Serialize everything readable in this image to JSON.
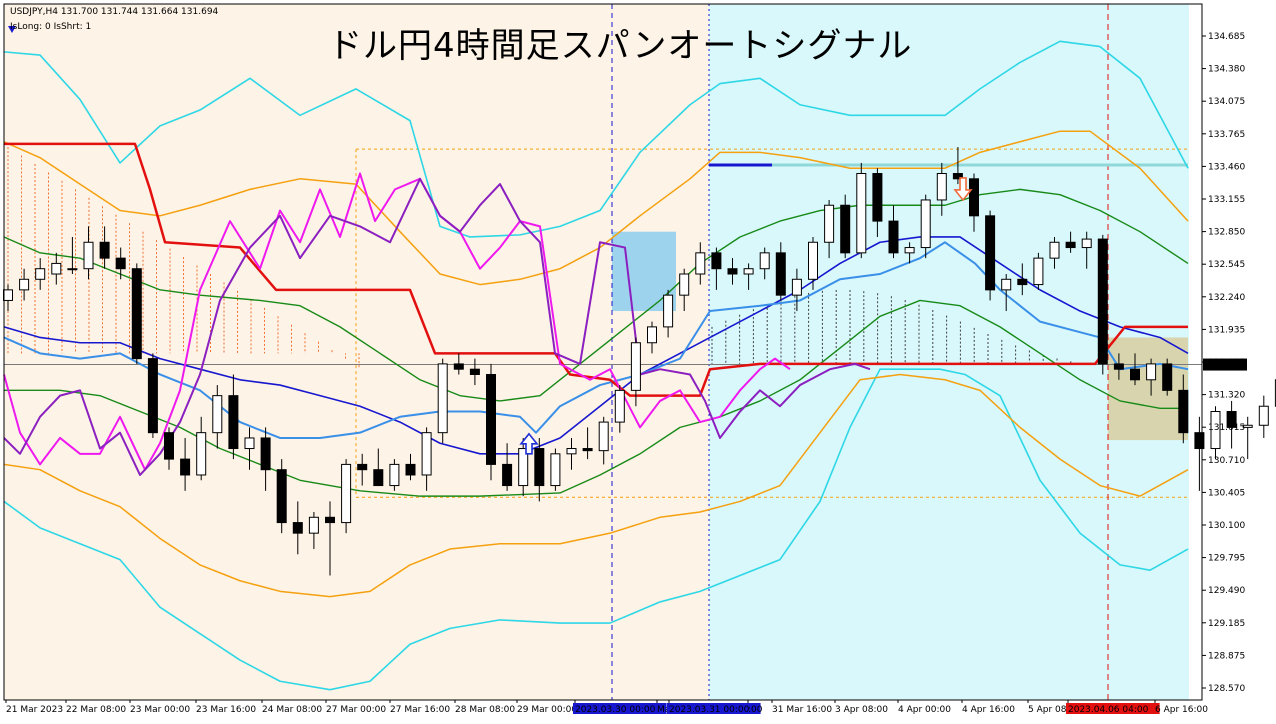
{
  "header": {
    "symbol_line": "USDJPY,H4  131.700 131.744 131.664 131.694",
    "indicator_line": "IsLong: 0 IsShrt: 1"
  },
  "title": "ドル円4時間足スパンオートシグナル",
  "chart_data": {
    "type": "candlestick",
    "symbol": "USDJPY",
    "timeframe": "H4",
    "ohlc_header": {
      "open": 131.7,
      "high": 131.744,
      "low": 131.664,
      "close": 131.694
    },
    "current_price": "131.694",
    "y_ticks": [
      "134.685",
      "134.380",
      "134.075",
      "133.765",
      "133.460",
      "133.155",
      "132.850",
      "132.545",
      "132.240",
      "131.935",
      "131.625",
      "131.320",
      "131.015",
      "130.710",
      "130.405",
      "130.100",
      "129.795",
      "129.490",
      "129.185",
      "128.875",
      "128.570"
    ],
    "ylim": [
      128.57,
      134.85
    ],
    "x_ticks": [
      "21 Mar 2023",
      "22 Mar 08:00",
      "23 Mar 00:00",
      "23 Mar 16:00",
      "24 Mar 08:00",
      "27 Mar 00:00",
      "27 Mar 16:00",
      "28 Mar 08:00",
      "29 Mar 00:00",
      "2023.03.30 00:00",
      "Ma",
      "2023.03.31 00:00",
      ":00",
      "31 Mar 16:00",
      "3 Apr 08:00",
      "4 Apr 00:00",
      "4 Apr 16:00",
      "5 Apr 08:00",
      "2023.04.06 04:00",
      "6 Apr 16:00"
    ],
    "highlighted_x_ticks": [
      "2023.03.30 00:00",
      "2023.03.31 00:00",
      "2023.04.06 04:00"
    ],
    "candles": [
      [
        132.3,
        132.45,
        132.2,
        132.4
      ],
      [
        132.4,
        132.6,
        132.3,
        132.5
      ],
      [
        132.5,
        132.7,
        132.4,
        132.6
      ],
      [
        132.55,
        132.75,
        132.45,
        132.65
      ],
      [
        132.6,
        132.9,
        132.55,
        132.6
      ],
      [
        132.6,
        133.0,
        132.5,
        132.85
      ],
      [
        132.85,
        133.0,
        132.6,
        132.7
      ],
      [
        132.7,
        132.8,
        132.5,
        132.6
      ],
      [
        132.6,
        132.65,
        131.7,
        131.75
      ],
      [
        131.75,
        131.8,
        131.0,
        131.05
      ],
      [
        131.05,
        131.1,
        130.7,
        130.8
      ],
      [
        130.8,
        131.0,
        130.5,
        130.65
      ],
      [
        130.65,
        131.2,
        130.6,
        131.05
      ],
      [
        131.05,
        131.5,
        130.9,
        131.4
      ],
      [
        131.4,
        131.6,
        130.8,
        130.9
      ],
      [
        130.9,
        131.1,
        130.7,
        131.0
      ],
      [
        131.0,
        131.1,
        130.5,
        130.7
      ],
      [
        130.7,
        130.8,
        130.1,
        130.2
      ],
      [
        130.2,
        130.4,
        129.9,
        130.1
      ],
      [
        130.1,
        130.3,
        129.95,
        130.25
      ],
      [
        130.25,
        130.4,
        129.7,
        130.2
      ],
      [
        130.2,
        130.8,
        130.1,
        130.75
      ],
      [
        130.75,
        130.85,
        130.55,
        130.7
      ],
      [
        130.7,
        130.9,
        130.6,
        130.55
      ],
      [
        130.55,
        130.8,
        130.5,
        130.75
      ],
      [
        130.75,
        130.85,
        130.6,
        130.65
      ],
      [
        130.65,
        131.1,
        130.5,
        131.05
      ],
      [
        131.05,
        131.75,
        130.95,
        131.7
      ],
      [
        131.7,
        131.8,
        131.6,
        131.65
      ],
      [
        131.65,
        131.75,
        131.5,
        131.6
      ],
      [
        131.6,
        131.7,
        130.6,
        130.75
      ],
      [
        130.75,
        130.95,
        130.5,
        130.55
      ],
      [
        130.55,
        131.0,
        130.45,
        130.9
      ],
      [
        130.9,
        131.0,
        130.4,
        130.55
      ],
      [
        130.55,
        130.9,
        130.5,
        130.85
      ],
      [
        130.85,
        131.0,
        130.7,
        130.9
      ],
      [
        130.9,
        131.1,
        130.8,
        130.88
      ],
      [
        130.88,
        131.2,
        130.75,
        131.15
      ],
      [
        131.15,
        131.5,
        131.05,
        131.45
      ],
      [
        131.45,
        131.95,
        131.3,
        131.9
      ],
      [
        131.9,
        132.1,
        131.8,
        132.05
      ],
      [
        132.05,
        132.4,
        131.95,
        132.35
      ],
      [
        132.35,
        132.6,
        132.2,
        132.55
      ],
      [
        132.55,
        132.85,
        132.45,
        132.75
      ],
      [
        132.75,
        132.8,
        132.4,
        132.6
      ],
      [
        132.6,
        132.7,
        132.45,
        132.55
      ],
      [
        132.55,
        132.65,
        132.4,
        132.6
      ],
      [
        132.6,
        132.8,
        132.5,
        132.75
      ],
      [
        132.75,
        132.85,
        132.3,
        132.35
      ],
      [
        132.35,
        132.6,
        132.2,
        132.5
      ],
      [
        132.5,
        132.9,
        132.4,
        132.85
      ],
      [
        132.85,
        133.25,
        132.7,
        133.2
      ],
      [
        133.2,
        133.3,
        132.7,
        132.75
      ],
      [
        132.75,
        133.6,
        132.7,
        133.5
      ],
      [
        133.5,
        133.55,
        132.9,
        133.05
      ],
      [
        133.05,
        133.2,
        132.7,
        132.75
      ],
      [
        132.75,
        132.85,
        132.65,
        132.8
      ],
      [
        132.8,
        133.3,
        132.7,
        133.25
      ],
      [
        133.25,
        133.6,
        133.1,
        133.5
      ],
      [
        133.5,
        133.75,
        133.4,
        133.45
      ],
      [
        133.45,
        133.5,
        132.95,
        133.1
      ],
      [
        133.1,
        133.15,
        132.3,
        132.4
      ],
      [
        132.4,
        132.55,
        132.2,
        132.5
      ],
      [
        132.5,
        132.65,
        132.35,
        132.45
      ],
      [
        132.45,
        132.75,
        132.4,
        132.7
      ],
      [
        132.7,
        132.9,
        132.6,
        132.85
      ],
      [
        132.85,
        132.95,
        132.75,
        132.8
      ],
      [
        132.8,
        132.95,
        132.6,
        132.88
      ],
      [
        132.88,
        132.92,
        131.6,
        131.7
      ],
      [
        131.7,
        131.8,
        131.55,
        131.65
      ],
      [
        131.65,
        131.8,
        131.5,
        131.55
      ],
      [
        131.55,
        131.75,
        131.4,
        131.7
      ],
      [
        131.7,
        131.75,
        131.4,
        131.45
      ],
      [
        131.45,
        131.6,
        130.95,
        131.05
      ],
      [
        131.05,
        131.2,
        130.5,
        130.9
      ],
      [
        130.9,
        131.3,
        130.8,
        131.25
      ],
      [
        131.25,
        131.35,
        130.9,
        131.1
      ],
      [
        131.1,
        131.2,
        130.8,
        131.12
      ],
      [
        131.12,
        131.4,
        131.0,
        131.3
      ],
      [
        131.3,
        131.7,
        131.2,
        131.55
      ],
      [
        131.55,
        131.9,
        131.5,
        131.62
      ],
      [
        131.62,
        131.85,
        131.55,
        131.75
      ],
      [
        131.7,
        131.744,
        131.664,
        131.694
      ]
    ]
  },
  "colors": {
    "past_bg": "#fdf3e6",
    "future_bg": "#d8f8fb",
    "bull_candle": "#ffffff",
    "bear_candle": "#000000",
    "cyan_band": "#2ed7e6",
    "orange_band": "#f5a00f",
    "green_line": "#188a18",
    "blue_line": "#1717d0",
    "light_blue_line": "#3a8fe8",
    "red_line": "#e31010",
    "magenta_line": "#ef19ef",
    "purple_line": "#8b1fc0",
    "down_arrow": "#f06a3c",
    "up_arrow": "#1e2fd6",
    "box_blue": "#7ec8f0",
    "box_tan": "#d8cfa0"
  },
  "icons": {
    "down_signal": "down-arrow-icon",
    "up_signal": "up-arrow-icon",
    "menu": "triangle-down-icon"
  }
}
